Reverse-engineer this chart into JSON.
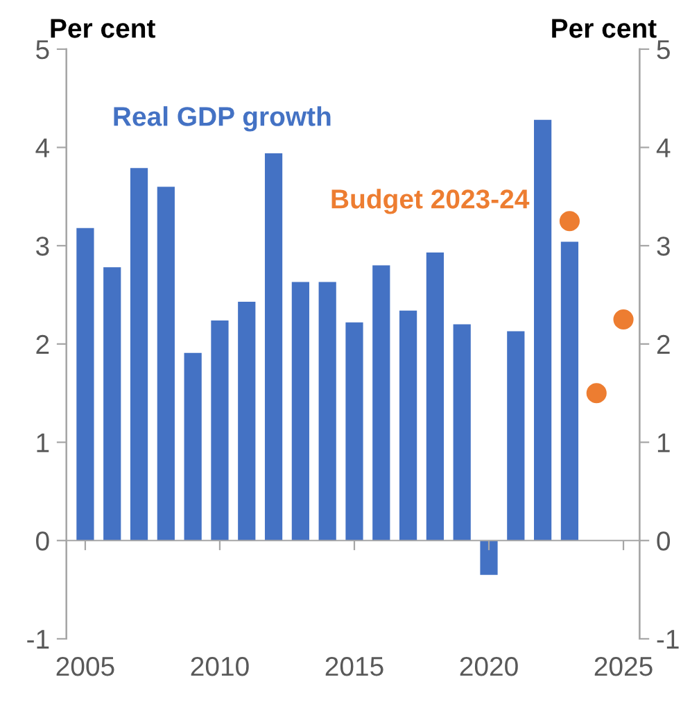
{
  "chart_data": {
    "type": "bar",
    "ylabel": "Per cent",
    "y2label": "Per cent",
    "x": [
      2005,
      2006,
      2007,
      2008,
      2009,
      2010,
      2011,
      2012,
      2013,
      2014,
      2015,
      2016,
      2017,
      2018,
      2019,
      2020,
      2021,
      2022,
      2023
    ],
    "series": [
      {
        "name": "Real GDP growth",
        "color": "#4472c4",
        "values": [
          3.18,
          2.78,
          3.79,
          3.6,
          1.91,
          2.24,
          2.43,
          3.94,
          2.63,
          2.63,
          2.22,
          2.8,
          2.34,
          2.93,
          2.2,
          -0.35,
          2.13,
          4.28,
          3.04
        ]
      },
      {
        "name": "Budget 2023-24",
        "type": "scatter",
        "color": "#ed7d31",
        "x": [
          2023,
          2024,
          2025
        ],
        "values": [
          3.25,
          1.5,
          2.25
        ]
      }
    ],
    "xlim": [
      2004.3,
      2025.6
    ],
    "xticks": [
      2005,
      2010,
      2015,
      2020,
      2025
    ],
    "ylim": [
      -1,
      5
    ],
    "yticks": [
      -1,
      0,
      1,
      2,
      3,
      4,
      5
    ],
    "y2lim": [
      -1,
      5
    ],
    "y2ticks": [
      -1,
      0,
      1,
      2,
      3,
      4,
      5
    ],
    "marker": "circle",
    "legend": false
  }
}
